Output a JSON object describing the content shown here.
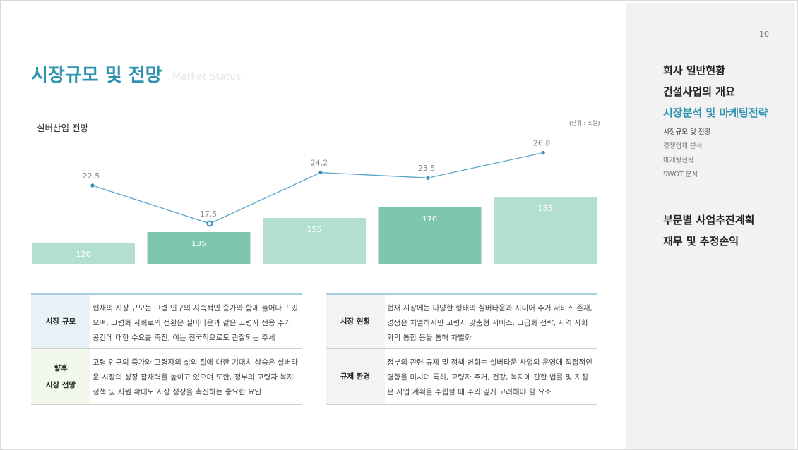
{
  "page": {
    "title": "시장규모 및 전망",
    "subtitle": "Market Status",
    "page_number": "10"
  },
  "sidebar": {
    "items": [
      {
        "label": "회사 일반현황",
        "level": "main",
        "active": false
      },
      {
        "label": "건설사업의 개요",
        "level": "main",
        "active": false
      },
      {
        "label": "시장분석 및 마케팅전략",
        "level": "main",
        "active": true
      },
      {
        "label": "시장규모 및 전망",
        "level": "sub",
        "active": true
      },
      {
        "label": "경쟁업체 분석",
        "level": "sub",
        "active": false
      },
      {
        "label": "마케팅전략",
        "level": "sub",
        "active": false
      },
      {
        "label": "SWOT 분석",
        "level": "sub",
        "active": false
      }
    ],
    "items2": [
      {
        "label": "부문별 사업추진계획",
        "level": "main",
        "active": false
      },
      {
        "label": "재무 및 추정손익",
        "level": "main",
        "active": false
      }
    ]
  },
  "chart_data": {
    "type": "bar",
    "title": "실버산업 전망",
    "unit": "(단위 : 조원)",
    "categories": [
      "",
      "",
      "",
      "",
      ""
    ],
    "series": [
      {
        "type": "bar",
        "values": [
          120,
          135,
          155,
          170,
          185
        ]
      },
      {
        "type": "line",
        "values": [
          22.5,
          17.5,
          24.2,
          23.5,
          26.8
        ]
      }
    ],
    "colors": {
      "bar_light": "#b3dfd2",
      "bar_dark": "#7fc6b0",
      "line": "#5aa5c9",
      "marker": "#3a8fc0"
    },
    "grid": false
  },
  "tables": {
    "left": [
      {
        "label": [
          "시장 규모"
        ],
        "text": "현재의 시장 규모는 고령 인구의 지속적인 증가와 함께 늘어나고 있으며, 고령화 사회로의 전환은 실버타운과 같은 고령자 전용 주거 공간에 대한 수요를 촉진, 이는 전국적으로도 관찰되는 추세"
      },
      {
        "label": [
          "향후",
          "시장 전망"
        ],
        "text": "고령 인구의 증가와 고령자의 삶의 질에 대한 기대치 상승은 실버타운 시장의 성장 잠재력을 높이고 있으며 또한, 정부의 고령자 복지 정책 및 지원 확대도 시장 성장을 촉진하는 중요한 요인"
      }
    ],
    "right": [
      {
        "label": [
          "시장 현황"
        ],
        "text": "현재 시장에는 다양한 형태의 실버타운과 시니어 주거 서비스 존재, 경쟁은 치열하지만 고령자 맞춤형 서비스, 고급화 전략, 지역 사회와의 통합 등을 통해 차별화"
      },
      {
        "label": [
          "규제 환경"
        ],
        "text": "정부의 관련 규제 및 정책 변화는 실버타운 사업의 운영에 직접적인 영향을 미치며 특히, 고령자 주거, 건강, 복지에 관한 법률 및 지침은 사업 계획을 수립할 때 주의 깊게 고려해야 할 요소"
      }
    ]
  }
}
